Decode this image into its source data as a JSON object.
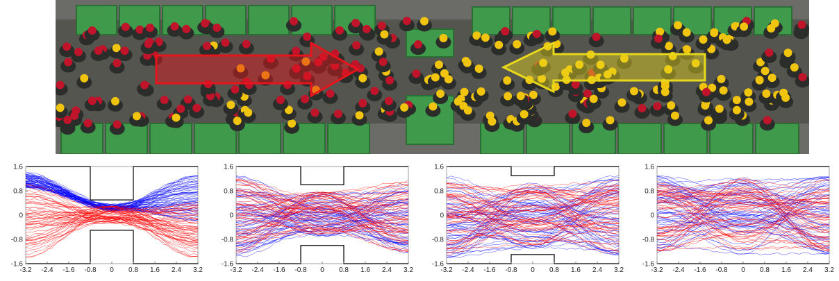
{
  "photo": {
    "arrow_left_color": "#e8141c",
    "arrow_right_color": "#e8d81c",
    "helmet_red": "#c0142a",
    "helmet_yellow": "#f1c40f",
    "barrier_color": "#3f9a4c"
  },
  "chart_data": [
    {
      "type": "line",
      "title": "",
      "xlabel": "",
      "ylabel": "",
      "xlim": [
        -3.2,
        3.2
      ],
      "ylim": [
        -1.6,
        1.6
      ],
      "x_ticks": [
        "-3.2",
        "-2.4",
        "-1.6",
        "-0.8",
        "0",
        "0.8",
        "1.6",
        "2.4",
        "3.2"
      ],
      "y_ticks": [
        "1.6",
        "0.8",
        "0",
        "-0.8",
        "-1.6"
      ],
      "bottleneck": {
        "x_start": -0.8,
        "x_end": 0.8,
        "half_width": 0.5
      },
      "series": [
        {
          "color": "#0000ff",
          "y_start_range": [
            0.9,
            1.4
          ],
          "y_mid_range": [
            0.15,
            0.35
          ],
          "y_end_range": [
            -0.2,
            1.3
          ]
        },
        {
          "color": "#ff0000",
          "y_start_range": [
            -1.4,
            1.0
          ],
          "y_mid_range": [
            -0.3,
            0.3
          ],
          "y_end_range": [
            -1.4,
            0.4
          ]
        }
      ],
      "grid": false
    },
    {
      "type": "line",
      "title": "",
      "xlabel": "",
      "ylabel": "",
      "xlim": [
        -3.2,
        3.2
      ],
      "ylim": [
        -1.6,
        1.6
      ],
      "x_ticks": [
        "-3.2",
        "-2.4",
        "-1.6",
        "-0.8",
        "0",
        "0.8",
        "1.6",
        "2.4",
        "3.2"
      ],
      "y_ticks": [
        "1.6",
        "0.8",
        "0",
        "-0.8",
        "-1.6"
      ],
      "bottleneck": {
        "x_start": -0.8,
        "x_end": 0.8,
        "half_width": 1.0
      },
      "series": [
        {
          "color": "#0000ff",
          "y_start_range": [
            -1.4,
            1.3
          ],
          "y_mid_range": [
            -0.7,
            0.8
          ],
          "y_end_range": [
            -1.3,
            1.0
          ]
        },
        {
          "color": "#ff0000",
          "y_start_range": [
            -1.3,
            1.2
          ],
          "y_mid_range": [
            -0.7,
            0.8
          ],
          "y_end_range": [
            -1.3,
            1.2
          ]
        }
      ],
      "grid": false
    },
    {
      "type": "line",
      "title": "",
      "xlabel": "",
      "ylabel": "",
      "xlim": [
        -3.2,
        3.2
      ],
      "ylim": [
        -1.6,
        1.6
      ],
      "x_ticks": [
        "-3.2",
        "-2.4",
        "-1.6",
        "-0.8",
        "0",
        "0.8",
        "1.6",
        "2.4",
        "3.2"
      ],
      "y_ticks": [
        "1.6",
        "0.8",
        "0",
        "-0.8",
        "-1.6"
      ],
      "bottleneck": {
        "x_start": -0.8,
        "x_end": 0.8,
        "half_width": 1.3
      },
      "series": [
        {
          "color": "#0000ff",
          "y_start_range": [
            -1.4,
            1.3
          ],
          "y_mid_range": [
            -1.1,
            1.1
          ],
          "y_end_range": [
            -1.4,
            1.3
          ]
        },
        {
          "color": "#ff0000",
          "y_start_range": [
            -1.3,
            1.1
          ],
          "y_mid_range": [
            -1.0,
            1.0
          ],
          "y_end_range": [
            -1.3,
            1.1
          ]
        }
      ],
      "grid": false
    },
    {
      "type": "line",
      "title": "",
      "xlabel": "",
      "ylabel": "",
      "xlim": [
        -3.2,
        3.2
      ],
      "ylim": [
        -1.6,
        1.6
      ],
      "x_ticks": [
        "-3.2",
        "-2.4",
        "-1.6",
        "-0.8",
        "0",
        "0.8",
        "1.6",
        "2.4",
        "3.2"
      ],
      "y_ticks": [
        "1.6",
        "0.8",
        "0",
        "-0.8",
        "-1.6"
      ],
      "bottleneck": null,
      "series": [
        {
          "color": "#0000ff",
          "y_start_range": [
            -1.3,
            1.3
          ],
          "y_mid_range": [
            -1.3,
            1.3
          ],
          "y_end_range": [
            -1.3,
            1.3
          ]
        },
        {
          "color": "#ff0000",
          "y_start_range": [
            -1.2,
            1.2
          ],
          "y_mid_range": [
            -1.2,
            1.2
          ],
          "y_end_range": [
            -1.2,
            1.2
          ]
        }
      ],
      "grid": false
    }
  ]
}
